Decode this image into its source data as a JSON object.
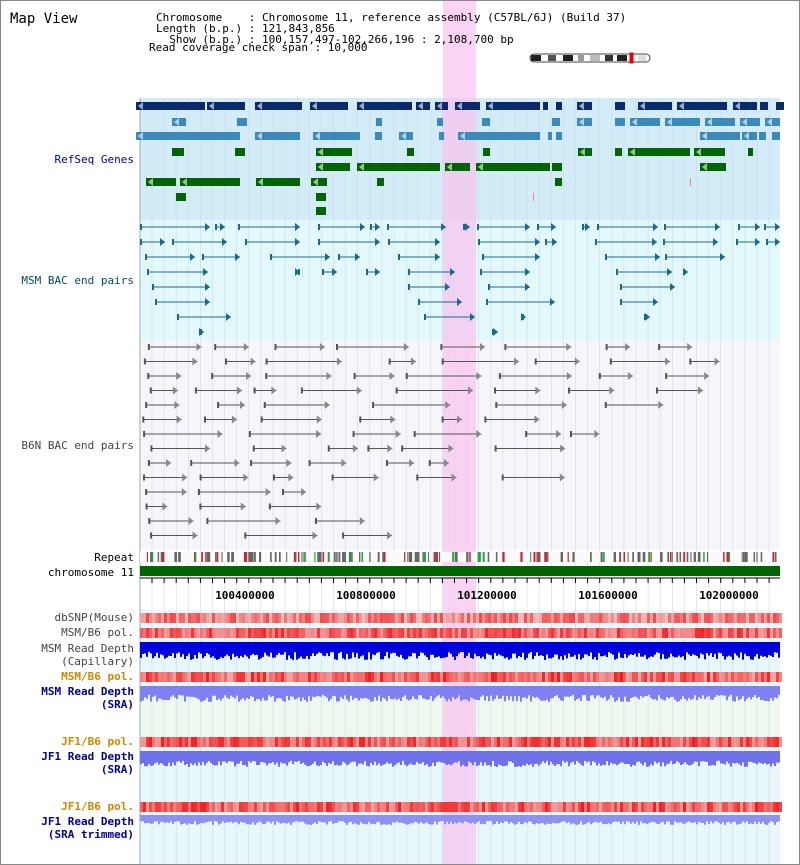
{
  "title": "Map View",
  "header": {
    "chromosome_line": "Chromosome    : Chromosome 11, reference assembly (C57BL/6J) (Build 37)",
    "length_line": "Length (b.p.) : 121,843,856",
    "show_line": "  Show (b.p.) : 100,157,497-102,266,196 : 2,108,700 bp",
    "coverage_line": "Read coverage check span : 10,000"
  },
  "tracks": {
    "refseq": "RefSeq Genes",
    "msm_bac": "MSM BAC end pairs",
    "b6n_bac": "B6N BAC end pairs",
    "repeat": "Repeat",
    "chromosome": "chromosome 11",
    "dbsnp": "dbSNP(Mouse)",
    "msm_pol": "MSM/B6 pol.",
    "msm_depth_cap_1": "MSM Read Depth",
    "msm_depth_cap_2": "(Capillary)",
    "msm_pol_sra": "MSM/B6 pol.",
    "msm_depth_sra_1": "MSM Read Depth",
    "msm_depth_sra_2": "(SRA)",
    "jf1_pol": "JF1/B6 pol.",
    "jf1_depth_1": "JF1 Read Depth",
    "jf1_depth_2": "(SRA)",
    "jf1_pol_trim": "JF1/B6 pol.",
    "jf1_trim_1": "JF1 Read Depth",
    "jf1_trim_2": "(SRA trimmed)"
  },
  "ruler": {
    "ticks": [
      "100400000",
      "100800000",
      "101200000",
      "101600000",
      "102000000"
    ]
  },
  "colors": {
    "refseq_dark": "#0a2a6b",
    "refseq_mid": "#3a8aba",
    "refseq_green": "#006400",
    "msm_bac": "#1a6a8a",
    "b6n_bac": "#555555",
    "highlight": "#f7c6f0",
    "chrom_bar": "#006400",
    "depth_blue": "#0000dd",
    "depth_light": "#8080f0",
    "label_navy": "#000090",
    "label_teal": "#004a6a",
    "label_orange": "#cc8800"
  }
}
